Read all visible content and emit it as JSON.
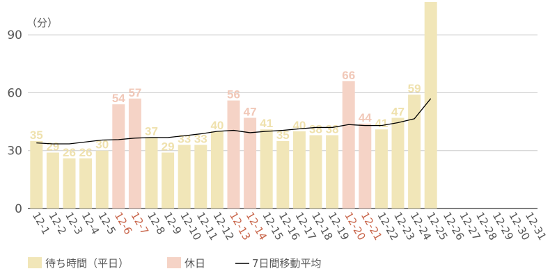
{
  "chart_data": {
    "type": "bar",
    "unit_label": "（分）",
    "categories": [
      "12-1",
      "12-2",
      "12-3",
      "12-4",
      "12-5",
      "12-6",
      "12-7",
      "12-8",
      "12-9",
      "12-10",
      "12-11",
      "12-12",
      "12-13",
      "12-14",
      "12-15",
      "12-16",
      "12-17",
      "12-18",
      "12-19",
      "12-20",
      "12-21",
      "12-22",
      "12-23",
      "12-24",
      "12-25",
      "12-26",
      "12-27",
      "12-28",
      "12-29",
      "12-30",
      "12-31"
    ],
    "holidays": [
      "12-6",
      "12-7",
      "12-13",
      "12-14",
      "12-20",
      "12-21"
    ],
    "values": [
      35,
      29,
      26,
      26,
      30,
      54,
      57,
      37,
      29,
      33,
      33,
      40,
      56,
      47,
      41,
      35,
      40,
      38,
      38,
      66,
      44,
      41,
      47,
      59,
      107,
      null,
      null,
      null,
      null,
      null,
      null
    ],
    "data_labels_shown_through": "12-24",
    "moving_average": [
      34,
      33.5,
      33.5,
      34.5,
      35.5,
      35.7,
      36.5,
      36.8,
      36.8,
      37.7,
      38.7,
      40,
      40.5,
      39.3,
      40,
      40.5,
      41.3,
      42,
      42,
      43.5,
      43,
      43,
      44.5,
      46.5,
      57,
      null,
      null,
      null,
      null,
      null,
      null
    ],
    "ylim": [
      0,
      107
    ],
    "yticks": [
      0,
      30,
      60,
      90
    ],
    "grid": true,
    "legend": {
      "placement": "bottom-left",
      "entries": [
        {
          "label": "待ち時間（平日）",
          "color": "#f1e6b8"
        },
        {
          "label": "休日",
          "color": "#f5d3c6"
        },
        {
          "label": "7日間移動平均",
          "color": "#000000"
        }
      ]
    },
    "colors": {
      "weekday": "#f1e6b8",
      "holiday": "#f5d3c6",
      "weekday_label": "#efe1ad",
      "holiday_label": "#f1c8b8",
      "holiday_tick": "#c8654a",
      "tick": "#555555",
      "grid": "#cccccc"
    }
  }
}
